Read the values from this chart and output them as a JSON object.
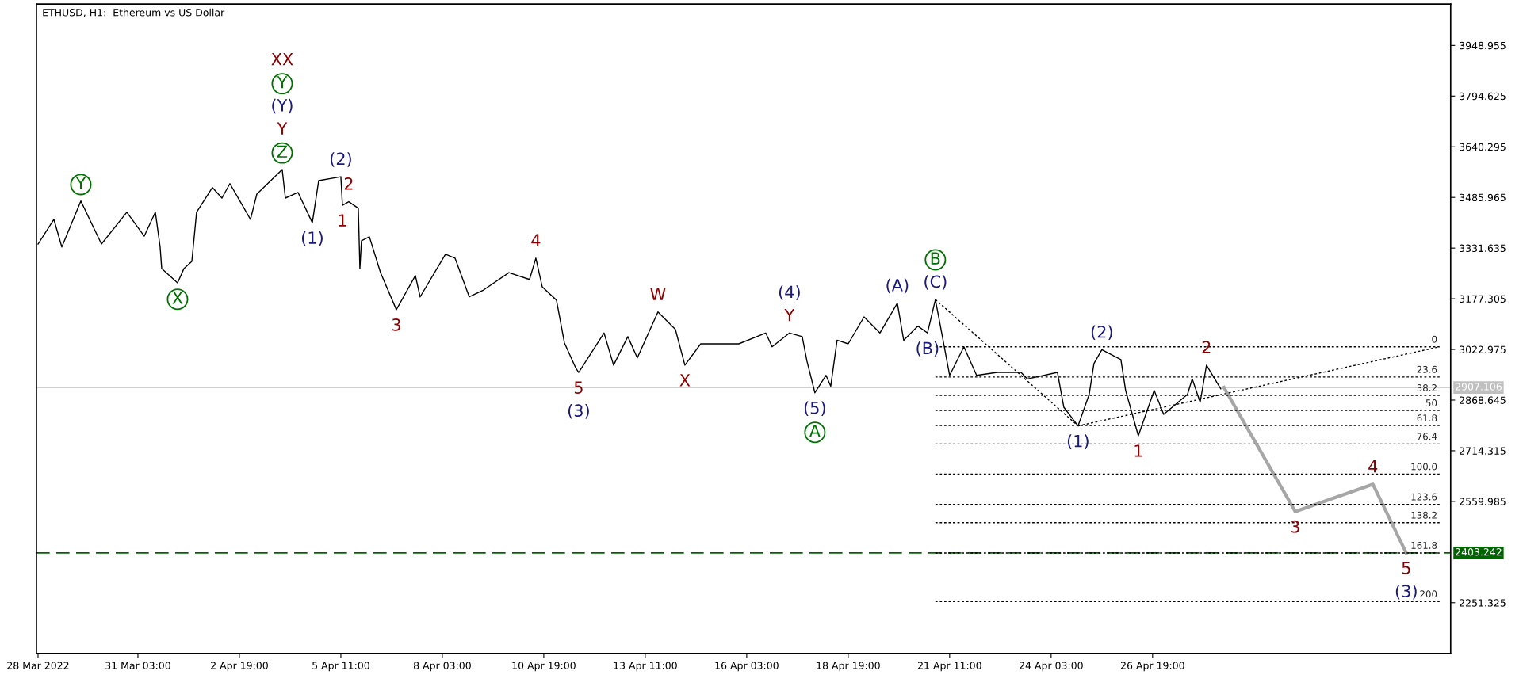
{
  "chart_data": {
    "type": "line",
    "title": "ETHUSD, H1:  Ethereum vs US Dollar",
    "xlim": [
      "2022-03-28T11:00",
      "2022-05-04T15:00"
    ],
    "ylim": [
      2097,
      4075
    ],
    "xticks": [
      {
        "value": "2022-03-28T12:00",
        "label": "28 Mar 2022"
      },
      {
        "value": "2022-03-31T03:00",
        "label": "31 Mar 03:00"
      },
      {
        "value": "2022-04-02T19:00",
        "label": "2 Apr 19:00"
      },
      {
        "value": "2022-04-05T11:00",
        "label": "5 Apr 11:00"
      },
      {
        "value": "2022-04-08T03:00",
        "label": "8 Apr 03:00"
      },
      {
        "value": "2022-04-10T19:00",
        "label": "10 Apr 19:00"
      },
      {
        "value": "2022-04-13T11:00",
        "label": "13 Apr 11:00"
      },
      {
        "value": "2022-04-16T03:00",
        "label": "16 Apr 03:00"
      },
      {
        "value": "2022-04-18T19:00",
        "label": "18 Apr 19:00"
      },
      {
        "value": "2022-04-21T11:00",
        "label": "21 Apr 11:00"
      },
      {
        "value": "2022-04-24T03:00",
        "label": "24 Apr 03:00"
      },
      {
        "value": "2022-04-26T19:00",
        "label": "26 Apr 19:00"
      }
    ],
    "yticks": [
      3948.955,
      3794.625,
      3640.295,
      3485.965,
      3331.635,
      3177.305,
      3022.975,
      2868.645,
      2714.315,
      2559.985,
      2251.325
    ],
    "grid": false,
    "marker": "none",
    "legend": false,
    "series": [
      {
        "color": "#000000",
        "line_style": "solid",
        "x": [
          "2022-03-28T12:00",
          "2022-03-28T22:00",
          "2022-03-29T03:00",
          "2022-03-29T15:00",
          "2022-03-30T04:00",
          "2022-03-30T20:00",
          "2022-03-31T07:00",
          "2022-03-31T14:00",
          "2022-03-31T17:00",
          "2022-03-31T18:00",
          "2022-04-01T04:00",
          "2022-04-01T08:00",
          "2022-04-01T13:00",
          "2022-04-01T16:00",
          "2022-04-02T02:00",
          "2022-04-02T08:00",
          "2022-04-02T13:00",
          "2022-04-03T02:00",
          "2022-04-03T06:00",
          "2022-04-03T22:00",
          "2022-04-04T00:00",
          "2022-04-04T08:00",
          "2022-04-04T17:00",
          "2022-04-04T21:00",
          "2022-04-05T11:00",
          "2022-04-05T12:00",
          "2022-04-05T16:00",
          "2022-04-05T22:00",
          "2022-04-05T23:00",
          "2022-04-06T00:00",
          "2022-04-06T05:00",
          "2022-04-06T12:00",
          "2022-04-06T22:00",
          "2022-04-07T10:00",
          "2022-04-07T13:00",
          "2022-04-08T05:00",
          "2022-04-08T11:00",
          "2022-04-08T20:00",
          "2022-04-09T05:00",
          "2022-04-09T21:00",
          "2022-04-10T10:00",
          "2022-04-10T14:00",
          "2022-04-10T18:00",
          "2022-04-11T03:00",
          "2022-04-11T08:00",
          "2022-04-11T15:00",
          "2022-04-11T17:00",
          "2022-04-12T09:00",
          "2022-04-12T15:00",
          "2022-04-13T00:00",
          "2022-04-13T06:00",
          "2022-04-13T19:00",
          "2022-04-14T06:00",
          "2022-04-14T12:00",
          "2022-04-14T22:00",
          "2022-04-15T22:00",
          "2022-04-16T15:00",
          "2022-04-16T19:00",
          "2022-04-17T06:00",
          "2022-04-17T14:00",
          "2022-04-17T17:00",
          "2022-04-17T22:00",
          "2022-04-18T05:00",
          "2022-04-18T08:00",
          "2022-04-18T12:00",
          "2022-04-18T19:00",
          "2022-04-19T05:00",
          "2022-04-19T15:00",
          "2022-04-20T02:00",
          "2022-04-20T06:00",
          "2022-04-20T15:00",
          "2022-04-20T21:00",
          "2022-04-21T02:00",
          "2022-04-21T06:00",
          "2022-04-21T11:00",
          "2022-04-21T20:00",
          "2022-04-22T04:00",
          "2022-04-22T17:00",
          "2022-04-23T08:00",
          "2022-04-23T12:00",
          "2022-04-24T07:00",
          "2022-04-24T11:00",
          "2022-04-24T20:00",
          "2022-04-25T03:00",
          "2022-04-25T06:00",
          "2022-04-25T11:00",
          "2022-04-25T23:00",
          "2022-04-26T02:00",
          "2022-04-26T10:00",
          "2022-04-26T20:00",
          "2022-04-27T02:00",
          "2022-04-27T17:00",
          "2022-04-27T20:00",
          "2022-04-28T01:00",
          "2022-04-28T05:00",
          "2022-04-28T14:00"
        ],
        "values": [
          3344,
          3419,
          3335,
          3475,
          3344,
          3441,
          3368,
          3441,
          3335,
          3269,
          3226,
          3269,
          3291,
          3441,
          3516,
          3484,
          3528,
          3419,
          3496,
          3571,
          3484,
          3501,
          3409,
          3537,
          3549,
          3462,
          3473,
          3453,
          3269,
          3354,
          3366,
          3257,
          3144,
          3248,
          3183,
          3313,
          3301,
          3183,
          3204,
          3257,
          3236,
          3301,
          3214,
          3173,
          3043,
          2968,
          2953,
          3073,
          2975,
          3062,
          2997,
          3137,
          3084,
          2975,
          3040,
          3040,
          3073,
          3031,
          3073,
          3062,
          2987,
          2891,
          2944,
          2911,
          3051,
          3040,
          3122,
          3073,
          3164,
          3051,
          3094,
          3073,
          3175,
          3073,
          2944,
          3031,
          2944,
          2953,
          2953,
          2933,
          2953,
          2847,
          2790,
          2886,
          2980,
          3022,
          2992,
          2898,
          2760,
          2898,
          2825,
          2886,
          2933,
          2862,
          2975,
          2903
        ]
      },
      {
        "color": "#a6a6a6",
        "line_style": "solid",
        "x": [
          "2022-04-28T16:00",
          "2022-04-30T13:00",
          "2022-05-02T14:00",
          "2022-05-03T11:00"
        ],
        "values": [
          2907,
          2529,
          2612,
          2403
        ]
      },
      {
        "color": "#000000",
        "line_style": "dotted",
        "x": [
          "2022-04-21T02:00",
          "2022-04-24T20:00"
        ],
        "values": [
          3175,
          2790
        ]
      },
      {
        "color": "#000000",
        "line_style": "dotted",
        "x": [
          "2022-04-24T20:00",
          "2022-05-04T08:00"
        ],
        "values": [
          2790,
          3031
        ]
      },
      {
        "color": "#000000",
        "line_style": "dotted",
        "x": [
          "2022-04-21T02:00",
          "2022-05-04T08:00"
        ],
        "values": [
          3031,
          3031
        ]
      },
      {
        "color": "#000000",
        "line_style": "dotted",
        "x": [
          "2022-04-21T02:00",
          "2022-05-04T08:00"
        ],
        "values": [
          2939,
          2939
        ]
      },
      {
        "color": "#000000",
        "line_style": "dotted",
        "x": [
          "2022-04-21T02:00",
          "2022-05-04T08:00"
        ],
        "values": [
          2883,
          2883
        ]
      },
      {
        "color": "#000000",
        "line_style": "dotted",
        "x": [
          "2022-04-21T02:00",
          "2022-05-04T08:00"
        ],
        "values": [
          2837,
          2837
        ]
      },
      {
        "color": "#000000",
        "line_style": "dotted",
        "x": [
          "2022-04-21T02:00",
          "2022-05-04T08:00"
        ],
        "values": [
          2791,
          2791
        ]
      },
      {
        "color": "#000000",
        "line_style": "dotted",
        "x": [
          "2022-04-21T02:00",
          "2022-05-04T08:00"
        ],
        "values": [
          2735,
          2735
        ]
      },
      {
        "color": "#000000",
        "line_style": "dotted",
        "x": [
          "2022-04-21T02:00",
          "2022-05-04T08:00"
        ],
        "values": [
          2643,
          2643
        ]
      },
      {
        "color": "#000000",
        "line_style": "dotted",
        "x": [
          "2022-04-21T02:00",
          "2022-05-04T08:00"
        ],
        "values": [
          2551,
          2551
        ]
      },
      {
        "color": "#000000",
        "line_style": "dotted",
        "x": [
          "2022-04-21T02:00",
          "2022-05-04T08:00"
        ],
        "values": [
          2495,
          2495
        ]
      },
      {
        "color": "#000000",
        "line_style": "dotted",
        "x": [
          "2022-04-21T02:00",
          "2022-05-04T08:00"
        ],
        "values": [
          2403,
          2403
        ]
      },
      {
        "color": "#000000",
        "line_style": "dotted",
        "x": [
          "2022-04-21T02:00",
          "2022-05-04T08:00"
        ],
        "values": [
          2255,
          2255
        ]
      }
    ],
    "ref_lines": [
      {
        "axis": "y",
        "value": 2907.106,
        "label": "2907.106",
        "color": "#c0c0c0",
        "line_style": "solid"
      },
      {
        "axis": "y",
        "value": 2403.242,
        "label": "2403.242",
        "color": "#006400",
        "line_style": "dashed"
      }
    ],
    "annotations": [
      {
        "text": "Y",
        "x": "2022-03-29T15:00",
        "y": 3475
      },
      {
        "text": "X",
        "x": "2022-04-01T04:00",
        "y": 3226
      },
      {
        "text": "Z",
        "x": "2022-04-03T22:00",
        "y": 3571
      },
      "Y",
      "(Y)",
      "Y",
      "XX",
      {
        "text": "(2)",
        "x": "2022-04-05T11:00",
        "y": 3549
      },
      {
        "text": "1",
        "x": "2022-04-05T12:00",
        "y": 3462
      },
      {
        "text": "2",
        "x": "2022-04-05T16:00",
        "y": 3473
      },
      {
        "text": "(1)",
        "x": "2022-04-04T17:00",
        "y": 3409
      },
      {
        "text": "3",
        "x": "2022-04-06T22:00",
        "y": 3144
      },
      {
        "text": "4",
        "x": "2022-04-10T14:00",
        "y": 3301
      },
      {
        "text": "5",
        "x": "2022-04-11T17:00",
        "y": 2953
      },
      "(3)",
      {
        "text": "W",
        "x": "2022-04-13T19:00",
        "y": 3137
      },
      {
        "text": "X",
        "x": "2022-04-14T12:00",
        "y": 2975
      },
      {
        "text": "Y",
        "x": "2022-04-17T06:00",
        "y": 3073
      },
      "(4)",
      {
        "text": "(5)",
        "x": "2022-04-17T22:00",
        "y": 2891
      },
      "A",
      {
        "text": "(A)",
        "x": "2022-04-20T02:00",
        "y": 3164
      },
      {
        "text": "(B)",
        "x": "2022-04-20T21:00",
        "y": 3073
      },
      {
        "text": "(C)",
        "x": "2022-04-21T02:00",
        "y": 3175
      },
      "B",
      {
        "text": "(1)",
        "x": "2022-04-24T20:00",
        "y": 2790
      },
      {
        "text": "(2)",
        "x": "2022-04-25T11:00",
        "y": 3022
      },
      {
        "text": "1",
        "x": "2022-04-26T10:00",
        "y": 2760
      },
      {
        "text": "2",
        "x": "2022-04-28T05:00",
        "y": 2975
      },
      {
        "text": "3",
        "x": "2022-04-30T13:00",
        "y": 2529
      },
      {
        "text": "4",
        "x": "2022-05-02T14:00",
        "y": 2612
      },
      {
        "text": "5",
        "x": "2022-05-03T11:00",
        "y": 2403
      },
      "(3)",
      {
        "text": "0",
        "x": "2022-05-04T08:00",
        "y": 3031
      },
      {
        "text": "23.6",
        "x": "2022-05-04T08:00",
        "y": 2939
      },
      {
        "text": "38.2",
        "x": "2022-05-04T08:00",
        "y": 2883
      },
      {
        "text": "50",
        "x": "2022-05-04T08:00",
        "y": 2837
      },
      {
        "text": "61.8",
        "x": "2022-05-04T08:00",
        "y": 2791
      },
      {
        "text": "76.4",
        "x": "2022-05-04T08:00",
        "y": 2735
      },
      {
        "text": "100.0",
        "x": "2022-05-04T08:00",
        "y": 2643
      },
      {
        "text": "123.6",
        "x": "2022-05-04T08:00",
        "y": 2551
      },
      {
        "text": "138.2",
        "x": "2022-05-04T08:00",
        "y": 2495
      },
      {
        "text": "161.8",
        "x": "2022-05-04T08:00",
        "y": 2403
      },
      {
        "text": "200",
        "x": "2022-05-04T08:00",
        "y": 2255
      }
    ]
  }
}
